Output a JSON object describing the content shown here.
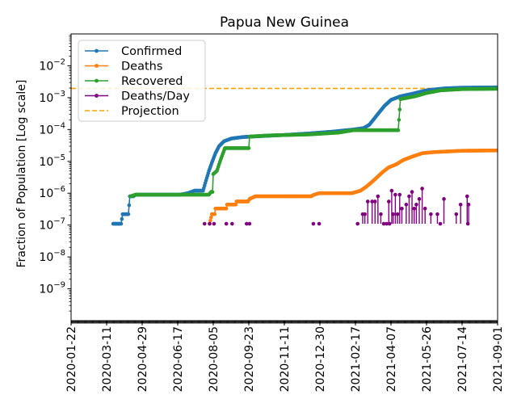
{
  "chart_data": {
    "type": "line",
    "title": "Papua New Guinea",
    "xlabel": "",
    "ylabel": "Fraction of Population [Log scale]",
    "yscale": "log",
    "ylim": [
      1e-10,
      0.1
    ],
    "xlim": [
      "2020-01-22",
      "2021-09-01"
    ],
    "grid": false,
    "legend_position": "top-left",
    "x_ticks": [
      "2020-01-22",
      "2020-03-11",
      "2020-04-29",
      "2020-06-17",
      "2020-08-05",
      "2020-09-23",
      "2020-11-11",
      "2020-12-30",
      "2021-02-17",
      "2021-04-07",
      "2021-05-26",
      "2021-07-14",
      "2021-09-01"
    ],
    "y_ticks": [
      {
        "value": 1e-09,
        "base": "10",
        "exp": "−9"
      },
      {
        "value": 1e-08,
        "base": "10",
        "exp": "−8"
      },
      {
        "value": 1e-07,
        "base": "10",
        "exp": "−7"
      },
      {
        "value": 1e-06,
        "base": "10",
        "exp": "−6"
      },
      {
        "value": 1e-05,
        "base": "10",
        "exp": "−5"
      },
      {
        "value": 0.0001,
        "base": "10",
        "exp": "−4"
      },
      {
        "value": 0.001,
        "base": "10",
        "exp": "−3"
      },
      {
        "value": 0.01,
        "base": "10",
        "exp": "−2"
      }
    ],
    "series": [
      {
        "name": "Confirmed",
        "color": "#1f77b4",
        "style": "line-dots",
        "points": [
          [
            "2020-03-20",
            1.1e-07
          ],
          [
            "2020-03-31",
            1.1e-07
          ],
          [
            "2020-04-02",
            2.2e-07
          ],
          [
            "2020-04-10",
            2.2e-07
          ],
          [
            "2020-04-12",
            8e-07
          ],
          [
            "2020-04-17",
            8e-07
          ],
          [
            "2020-04-20",
            9e-07
          ],
          [
            "2020-06-20",
            9e-07
          ],
          [
            "2020-07-01",
            1e-06
          ],
          [
            "2020-07-10",
            1.2e-06
          ],
          [
            "2020-07-22",
            1.2e-06
          ],
          [
            "2020-07-26",
            2.5e-06
          ],
          [
            "2020-07-30",
            5e-06
          ],
          [
            "2020-08-03",
            9e-06
          ],
          [
            "2020-08-08",
            1.8e-05
          ],
          [
            "2020-08-13",
            3e-05
          ],
          [
            "2020-08-20",
            4.3e-05
          ],
          [
            "2020-08-30",
            5.2e-05
          ],
          [
            "2020-09-15",
            5.8e-05
          ],
          [
            "2020-10-10",
            6.2e-05
          ],
          [
            "2020-11-15",
            6.8e-05
          ],
          [
            "2020-12-15",
            7.5e-05
          ],
          [
            "2021-01-15",
            8.5e-05
          ],
          [
            "2021-02-15",
            0.0001
          ],
          [
            "2021-02-28",
            0.00011
          ],
          [
            "2021-03-08",
            0.00014
          ],
          [
            "2021-03-15",
            0.00022
          ],
          [
            "2021-03-22",
            0.00035
          ],
          [
            "2021-03-29",
            0.00055
          ],
          [
            "2021-04-07",
            0.00085
          ],
          [
            "2021-04-20",
            0.0011
          ],
          [
            "2021-05-05",
            0.0013
          ],
          [
            "2021-05-26",
            0.0017
          ],
          [
            "2021-06-20",
            0.00195
          ],
          [
            "2021-07-14",
            0.00205
          ],
          [
            "2021-09-01",
            0.0021
          ]
        ]
      },
      {
        "name": "Deaths",
        "color": "#ff7f0e",
        "style": "line-dots",
        "points": [
          [
            "2020-07-31",
            1.1e-07
          ],
          [
            "2020-08-03",
            2.2e-07
          ],
          [
            "2020-08-07",
            2.2e-07
          ],
          [
            "2020-08-08",
            3.3e-07
          ],
          [
            "2020-08-23",
            3.3e-07
          ],
          [
            "2020-08-24",
            4.4e-07
          ],
          [
            "2020-09-05",
            4.4e-07
          ],
          [
            "2020-09-06",
            5.5e-07
          ],
          [
            "2020-09-22",
            5.5e-07
          ],
          [
            "2020-09-24",
            6.6e-07
          ],
          [
            "2020-10-02",
            8e-07
          ],
          [
            "2020-12-18",
            8e-07
          ],
          [
            "2020-12-22",
            9e-07
          ],
          [
            "2020-12-29",
            1e-06
          ],
          [
            "2021-02-12",
            1e-06
          ],
          [
            "2021-02-24",
            1.2e-06
          ],
          [
            "2021-03-04",
            1.6e-06
          ],
          [
            "2021-03-14",
            2.5e-06
          ],
          [
            "2021-03-26",
            4.5e-06
          ],
          [
            "2021-04-04",
            6.5e-06
          ],
          [
            "2021-04-14",
            8e-06
          ],
          [
            "2021-04-24",
            1.1e-05
          ],
          [
            "2021-05-06",
            1.4e-05
          ],
          [
            "2021-05-20",
            1.8e-05
          ],
          [
            "2021-06-05",
            1.95e-05
          ],
          [
            "2021-06-25",
            2.05e-05
          ],
          [
            "2021-07-14",
            2.15e-05
          ],
          [
            "2021-09-01",
            2.2e-05
          ]
        ]
      },
      {
        "name": "Recovered",
        "color": "#2ca02c",
        "style": "line-dots",
        "points": [
          [
            "2020-04-13",
            8e-07
          ],
          [
            "2020-04-20",
            9e-07
          ],
          [
            "2020-07-30",
            9e-07
          ],
          [
            "2020-08-02",
            1.1e-06
          ],
          [
            "2020-08-04",
            1.1e-06
          ],
          [
            "2020-08-05",
            4e-06
          ],
          [
            "2020-08-10",
            5e-06
          ],
          [
            "2020-08-15",
            1.1e-05
          ],
          [
            "2020-08-21",
            2.6e-05
          ],
          [
            "2020-09-23",
            2.6e-05
          ],
          [
            "2020-09-24",
            6e-05
          ],
          [
            "2020-10-20",
            6.5e-05
          ],
          [
            "2020-12-15",
            7e-05
          ],
          [
            "2021-01-25",
            8e-05
          ],
          [
            "2021-02-14",
            9.5e-05
          ],
          [
            "2021-04-17",
            9.5e-05
          ],
          [
            "2021-04-20",
            0.0009
          ],
          [
            "2021-05-10",
            0.0011
          ],
          [
            "2021-05-26",
            0.0014
          ],
          [
            "2021-06-15",
            0.0017
          ],
          [
            "2021-07-14",
            0.00185
          ],
          [
            "2021-09-01",
            0.0019
          ]
        ]
      },
      {
        "name": "Deaths/Day",
        "color": "#800080",
        "style": "dots-spikes",
        "points": [
          [
            "2020-07-24",
            1.1e-07
          ],
          [
            "2020-07-31",
            1.1e-07
          ],
          [
            "2020-08-06",
            1.1e-07
          ],
          [
            "2020-08-23",
            1.1e-07
          ],
          [
            "2020-08-31",
            1.1e-07
          ],
          [
            "2020-09-20",
            1.1e-07
          ],
          [
            "2020-09-24",
            1.1e-07
          ],
          [
            "2020-12-21",
            1.1e-07
          ],
          [
            "2020-12-29",
            1.1e-07
          ],
          [
            "2021-02-20",
            1.1e-07
          ],
          [
            "2021-02-27",
            2.2e-07
          ],
          [
            "2021-03-02",
            2.2e-07
          ],
          [
            "2021-03-06",
            5.5e-07
          ],
          [
            "2021-03-12",
            5.5e-07
          ],
          [
            "2021-03-16",
            5.5e-07
          ],
          [
            "2021-03-20",
            8e-07
          ],
          [
            "2021-03-24",
            2.2e-07
          ],
          [
            "2021-03-28",
            1.1e-07
          ],
          [
            "2021-04-01",
            1.1e-07
          ],
          [
            "2021-04-04",
            5.5e-07
          ],
          [
            "2021-04-05",
            1.1e-07
          ],
          [
            "2021-04-08",
            1.2e-06
          ],
          [
            "2021-04-10",
            2.2e-07
          ],
          [
            "2021-04-13",
            9e-07
          ],
          [
            "2021-04-16",
            2.2e-07
          ],
          [
            "2021-04-19",
            9e-07
          ],
          [
            "2021-04-22",
            3.3e-07
          ],
          [
            "2021-04-28",
            4.4e-07
          ],
          [
            "2021-05-02",
            8e-07
          ],
          [
            "2021-05-06",
            1.1e-06
          ],
          [
            "2021-05-09",
            3.3e-07
          ],
          [
            "2021-05-12",
            4.4e-07
          ],
          [
            "2021-05-16",
            6.6e-07
          ],
          [
            "2021-05-20",
            1.4e-06
          ],
          [
            "2021-05-24",
            3.3e-07
          ],
          [
            "2021-06-01",
            2.2e-07
          ],
          [
            "2021-06-10",
            2.2e-07
          ],
          [
            "2021-06-14",
            1.1e-07
          ],
          [
            "2021-06-19",
            6.6e-07
          ],
          [
            "2021-07-06",
            2.2e-07
          ],
          [
            "2021-07-12",
            4.4e-07
          ],
          [
            "2021-07-21",
            8e-07
          ],
          [
            "2021-07-22",
            1.1e-07
          ],
          [
            "2021-07-23",
            4.4e-07
          ]
        ]
      },
      {
        "name": "Projection",
        "color": "#ffa500",
        "style": "dashed-hline",
        "value": 0.00195
      }
    ]
  }
}
